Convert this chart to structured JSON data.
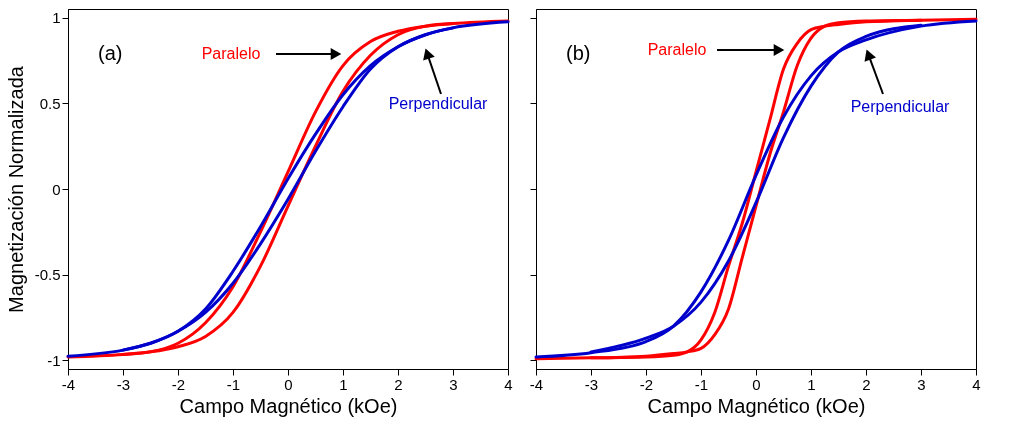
{
  "chart_data": [
    {
      "type": "line",
      "xlabel": "Campo Magnético (kOe)",
      "ylabel": "Magnetización Normalizada",
      "xlim": [
        -4,
        4
      ],
      "ylim": [
        -1.05,
        1.05
      ],
      "xticks": [
        -4,
        -3,
        -2,
        -1,
        0,
        1,
        2,
        3,
        4
      ],
      "yticks": [
        -1,
        -0.5,
        0,
        0.5,
        1
      ],
      "grid": false,
      "legend": false,
      "line_style": "solid",
      "marker": "none",
      "series": [
        {
          "color": "#ff0000",
          "x": [
            -4,
            -3,
            -2.5,
            -2,
            -1.5,
            -1,
            -0.5,
            0,
            0.5,
            1,
            1.5,
            2,
            2.5,
            3,
            4
          ],
          "values": [
            -0.98,
            -0.965,
            -0.95,
            -0.9,
            -0.78,
            -0.57,
            -0.25,
            0.1,
            0.45,
            0.72,
            0.86,
            0.92,
            0.95,
            0.965,
            0.98
          ]
        },
        {
          "color": "#ff0000",
          "x": [
            -3,
            -2.5,
            -2,
            -1.5,
            -1,
            -0.5,
            0,
            0.5,
            1,
            1.5,
            2,
            2.5,
            3
          ],
          "values": [
            -0.965,
            -0.95,
            -0.92,
            -0.86,
            -0.72,
            -0.45,
            -0.1,
            0.25,
            0.57,
            0.78,
            0.9,
            0.95,
            0.965
          ]
        },
        {
          "color": "#0000cc",
          "x": [
            -4,
            -3,
            -2.5,
            -2,
            -1.5,
            -1,
            -0.5,
            0,
            0.5,
            1,
            1.5,
            2,
            2.5,
            3,
            4
          ],
          "values": [
            -0.975,
            -0.94,
            -0.9,
            -0.83,
            -0.7,
            -0.48,
            -0.22,
            0.06,
            0.32,
            0.55,
            0.72,
            0.83,
            0.9,
            0.94,
            0.975
          ]
        },
        {
          "color": "#0000cc",
          "x": [
            -3,
            -2.5,
            -2,
            -1.5,
            -1,
            -0.5,
            0,
            0.5,
            1,
            1.5,
            2,
            2.5,
            3
          ],
          "values": [
            -0.94,
            -0.9,
            -0.83,
            -0.72,
            -0.55,
            -0.32,
            -0.06,
            0.22,
            0.48,
            0.7,
            0.83,
            0.9,
            0.94
          ]
        }
      ],
      "annotations": [
        "(a)",
        "Paralelo",
        "Perpendicular"
      ]
    },
    {
      "type": "line",
      "xlabel": "Campo Magnético (kOe)",
      "xlim": [
        -4,
        4
      ],
      "ylim": [
        -1.05,
        1.05
      ],
      "xticks": [
        -4,
        -3,
        -2,
        -1,
        0,
        1,
        2,
        3,
        4
      ],
      "yticks": [
        -1,
        -0.5,
        0,
        0.5,
        1
      ],
      "tick_labels": "x",
      "grid": false,
      "legend": false,
      "line_style": "solid",
      "marker": "none",
      "series": [
        {
          "color": "#ff0000",
          "x": [
            -4,
            -3,
            -2,
            -1.5,
            -1.25,
            -1,
            -0.75,
            -0.5,
            -0.25,
            0,
            0.25,
            0.5,
            0.75,
            1,
            1.25,
            1.5,
            2,
            3,
            4
          ],
          "values": [
            -0.99,
            -0.985,
            -0.98,
            -0.97,
            -0.95,
            -0.88,
            -0.72,
            -0.45,
            -0.2,
            0.1,
            0.4,
            0.7,
            0.85,
            0.93,
            0.95,
            0.96,
            0.975,
            0.985,
            0.99
          ]
        },
        {
          "color": "#ff0000",
          "x": [
            -3,
            -2,
            -1.5,
            -1.25,
            -1,
            -0.75,
            -0.5,
            -0.25,
            0,
            0.25,
            0.5,
            0.75,
            1,
            1.25,
            1.5,
            2,
            3
          ],
          "values": [
            -0.985,
            -0.975,
            -0.96,
            -0.95,
            -0.93,
            -0.85,
            -0.7,
            -0.4,
            -0.1,
            0.2,
            0.45,
            0.72,
            0.88,
            0.95,
            0.97,
            0.98,
            0.985
          ]
        },
        {
          "color": "#0000cc",
          "x": [
            -4,
            -3,
            -2,
            -1.5,
            -1,
            -0.5,
            0,
            0.5,
            1,
            1.5,
            2,
            3,
            4
          ],
          "values": [
            -0.98,
            -0.955,
            -0.89,
            -0.8,
            -0.6,
            -0.3,
            0.08,
            0.42,
            0.66,
            0.8,
            0.87,
            0.95,
            0.98
          ]
        },
        {
          "color": "#0000cc",
          "x": [
            -3,
            -2,
            -1.5,
            -1,
            -0.5,
            0,
            0.5,
            1,
            1.5,
            2,
            3
          ],
          "values": [
            -0.95,
            -0.87,
            -0.8,
            -0.66,
            -0.42,
            -0.08,
            0.3,
            0.6,
            0.8,
            0.89,
            0.955
          ]
        }
      ],
      "annotations": [
        "(b)",
        "Paralelo",
        "Perpendicular"
      ]
    }
  ]
}
